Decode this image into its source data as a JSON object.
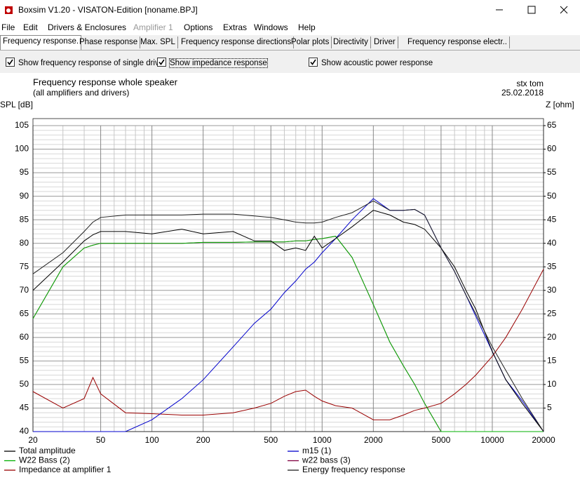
{
  "window": {
    "title": "Boxsim V1.20 - VISATON-Edition [noname.BPJ]",
    "menu": [
      {
        "label": "File"
      },
      {
        "label": "Edit"
      },
      {
        "label": "Drivers & Enclosures"
      },
      {
        "label": "Amplifier 1",
        "enabled": false
      },
      {
        "label": "Options"
      },
      {
        "label": "Extras"
      },
      {
        "label": "Windows"
      },
      {
        "label": "Help"
      }
    ],
    "tabs": [
      {
        "label": "Frequency response.",
        "selected": true
      },
      {
        "label": "Phase response"
      },
      {
        "label": "Max. SPL"
      },
      {
        "label": "Frequency response directions"
      },
      {
        "label": "Polar plots"
      },
      {
        "label": "Directivity"
      },
      {
        "label": "Driver"
      },
      {
        "label": "Frequency response electr.."
      }
    ],
    "checkboxes": [
      {
        "label": "Show frequency response of single drive",
        "checked": true
      },
      {
        "label": "Show impedance response",
        "checked": true
      },
      {
        "label": "Show acoustic power response",
        "checked": true
      }
    ]
  },
  "chart_data": {
    "type": "line",
    "title": "Frequency response whole speaker",
    "subtitle": "(all amplifiers and drivers)",
    "annotations": [
      "stx tom",
      "25.02.2018"
    ],
    "ylabel": "SPL [dB]",
    "y2label": "Z [ohm]",
    "log_x": true,
    "grid": true,
    "minor_grid": true,
    "x": [
      20,
      30,
      40,
      45,
      50,
      70,
      100,
      150,
      200,
      300,
      400,
      500,
      600,
      700,
      800,
      900,
      1000,
      1200,
      1500,
      2000,
      2500,
      3000,
      3500,
      4000,
      5000,
      6000,
      7000,
      8000,
      10000,
      12000,
      15000,
      20000
    ],
    "xlim": [
      20,
      20000
    ],
    "xticks": [
      20,
      50,
      100,
      200,
      500,
      1000,
      2000,
      5000,
      10000,
      20000
    ],
    "ylim": [
      40,
      105
    ],
    "yticks": [
      40,
      45,
      50,
      55,
      60,
      65,
      70,
      75,
      80,
      85,
      90,
      95,
      100,
      105
    ],
    "y2lim": [
      0,
      65
    ],
    "y2ticks": [
      5,
      10,
      15,
      20,
      25,
      30,
      35,
      40,
      45,
      50,
      55,
      60,
      65
    ],
    "series": [
      {
        "name": "Total amplitude",
        "color": "#000000",
        "values": [
          70,
          76,
          80.5,
          81.8,
          82.5,
          82.5,
          82,
          83,
          82,
          82.5,
          80.5,
          80.5,
          78.5,
          79,
          78.5,
          81.5,
          79,
          81,
          83.5,
          87,
          86,
          84.5,
          84,
          83,
          79,
          75,
          70,
          66,
          57,
          51,
          46,
          40
        ]
      },
      {
        "name": "m15 (1)",
        "color": "#0000cc",
        "values": [
          40,
          40,
          40,
          40,
          40,
          40,
          42.5,
          47,
          51,
          58,
          63,
          66,
          69.5,
          72,
          74.5,
          76,
          78,
          81,
          85,
          89.5,
          87,
          87,
          87.2,
          86,
          79,
          74,
          69,
          64.5,
          57,
          51,
          46.5,
          40
        ]
      },
      {
        "name": "W22 Bass (2)",
        "color": "#00b000",
        "values": [
          64,
          75,
          79,
          79.6,
          80,
          80,
          80,
          80,
          80.2,
          80.2,
          80.3,
          80.3,
          80.3,
          80.5,
          80.5,
          80.8,
          81,
          81.5,
          77,
          67,
          59,
          54,
          50,
          46,
          40,
          40,
          40,
          40,
          40,
          40,
          40,
          40
        ]
      },
      {
        "name": "w22 bass (3)",
        "color": "#800040",
        "values": [
          64,
          75,
          79,
          79.6,
          80,
          80,
          80,
          80,
          80.2,
          80.2,
          80.3,
          80.3,
          80.3,
          80.5,
          80.5,
          80.8,
          81,
          81.5,
          77,
          67,
          59,
          54,
          50,
          46,
          40,
          40,
          40,
          40,
          40,
          40,
          40,
          40
        ]
      },
      {
        "name": "Impedance at amplifier 1",
        "color": "#990000",
        "axis": "y2",
        "values": [
          8.5,
          5,
          7,
          11.5,
          8,
          4,
          3.8,
          3.5,
          3.5,
          4,
          5,
          6,
          7.5,
          8.5,
          8.8,
          7.5,
          6.5,
          5.5,
          5,
          2.5,
          2.5,
          3.5,
          4.5,
          5,
          6,
          8,
          10,
          12,
          16,
          20,
          26,
          34.5
        ]
      },
      {
        "name": "Energy frequency response",
        "color": "#202020",
        "values": [
          73.5,
          78,
          82.5,
          84.5,
          85.5,
          86,
          86,
          86,
          86.2,
          86.2,
          85.8,
          85.5,
          85,
          84.5,
          84.3,
          84.3,
          84.5,
          85.5,
          86.5,
          89,
          87,
          87,
          87.2,
          86,
          79,
          74,
          69,
          65,
          58,
          53,
          47,
          40
        ]
      }
    ]
  }
}
